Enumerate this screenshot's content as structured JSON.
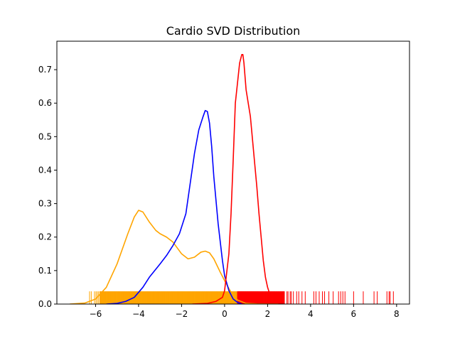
{
  "chart_data": {
    "type": "line",
    "title": "Cardio SVD Distribution",
    "xlabel": "",
    "ylabel": "",
    "xlim": [
      -7.8,
      8.6
    ],
    "ylim": [
      0,
      0.785
    ],
    "xticks": [
      -6,
      -4,
      -2,
      0,
      2,
      4,
      6,
      8
    ],
    "xtick_labels": [
      "−6",
      "−4",
      "−2",
      "0",
      "2",
      "4",
      "6",
      "8"
    ],
    "yticks": [
      0.0,
      0.1,
      0.2,
      0.3,
      0.4,
      0.5,
      0.6,
      0.7
    ],
    "ytick_labels": [
      "0.0",
      "0.1",
      "0.2",
      "0.3",
      "0.4",
      "0.5",
      "0.6",
      "0.7"
    ],
    "grid": false,
    "legend": "none",
    "series": [
      {
        "color": "#ffa500",
        "x": [
          -7.2,
          -6.5,
          -6.0,
          -5.5,
          -5.0,
          -4.5,
          -4.2,
          -4.0,
          -3.8,
          -3.5,
          -3.2,
          -3.0,
          -2.7,
          -2.4,
          -2.0,
          -1.7,
          -1.4,
          -1.1,
          -0.9,
          -0.7,
          -0.5,
          -0.2,
          0.0,
          0.3,
          0.6,
          1.0,
          1.5,
          2.0,
          2.5
        ],
        "y": [
          0.0,
          0.003,
          0.015,
          0.05,
          0.12,
          0.21,
          0.26,
          0.28,
          0.275,
          0.245,
          0.22,
          0.21,
          0.2,
          0.185,
          0.15,
          0.135,
          0.14,
          0.155,
          0.158,
          0.153,
          0.135,
          0.095,
          0.07,
          0.035,
          0.012,
          0.002,
          0.0005,
          0.0,
          0.0
        ]
      },
      {
        "color": "#0000ff",
        "x": [
          -5.5,
          -5.0,
          -4.6,
          -4.2,
          -3.8,
          -3.5,
          -3.0,
          -2.7,
          -2.4,
          -2.1,
          -1.8,
          -1.6,
          -1.4,
          -1.2,
          -1.0,
          -0.9,
          -0.8,
          -0.7,
          -0.6,
          -0.5,
          -0.3,
          -0.1,
          0.0,
          0.2,
          0.4,
          0.6,
          0.8
        ],
        "y": [
          0.0,
          0.002,
          0.008,
          0.02,
          0.05,
          0.08,
          0.12,
          0.145,
          0.175,
          0.21,
          0.27,
          0.36,
          0.45,
          0.52,
          0.56,
          0.578,
          0.575,
          0.54,
          0.47,
          0.38,
          0.24,
          0.13,
          0.085,
          0.04,
          0.015,
          0.005,
          0.0
        ]
      },
      {
        "color": "#ff0000",
        "x": [
          -1.5,
          -0.8,
          -0.4,
          -0.1,
          0.0,
          0.2,
          0.3,
          0.4,
          0.5,
          0.6,
          0.7,
          0.8,
          0.85,
          0.9,
          1.0,
          1.1,
          1.2,
          1.3,
          1.4,
          1.5,
          1.6,
          1.7,
          1.8,
          1.9,
          2.0,
          2.1,
          2.3,
          2.5,
          2.8
        ],
        "y": [
          0.0,
          0.002,
          0.008,
          0.02,
          0.04,
          0.15,
          0.27,
          0.43,
          0.6,
          0.66,
          0.72,
          0.745,
          0.745,
          0.72,
          0.64,
          0.6,
          0.56,
          0.49,
          0.42,
          0.35,
          0.27,
          0.2,
          0.13,
          0.08,
          0.05,
          0.03,
          0.015,
          0.005,
          0.0
        ]
      }
    ],
    "rug": [
      {
        "color": "#ffa500",
        "height": 0.038,
        "dense_range": [
          -5.8,
          1.6
        ],
        "points": [
          -6.28,
          -6.2,
          -6.05,
          -5.98,
          -5.92,
          -5.86,
          1.75,
          1.9,
          2.05,
          2.15,
          2.3
        ]
      },
      {
        "color": "#ff0000",
        "height": 0.038,
        "dense_range": [
          0.6,
          2.8
        ],
        "points": [
          2.9,
          2.95,
          3.05,
          3.1,
          3.2,
          3.35,
          3.45,
          3.6,
          3.75,
          4.15,
          4.25,
          4.4,
          4.55,
          4.65,
          4.85,
          5.05,
          5.3,
          5.4,
          5.5,
          5.6,
          6.0,
          6.45,
          6.95,
          7.1,
          7.55,
          7.65,
          7.7,
          7.85
        ]
      }
    ]
  }
}
